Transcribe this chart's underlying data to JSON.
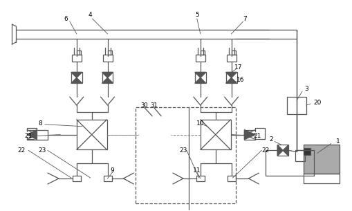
{
  "lc": "#555555",
  "lw": 0.9,
  "fig_w": 5.09,
  "fig_h": 3.05,
  "dpi": 100
}
